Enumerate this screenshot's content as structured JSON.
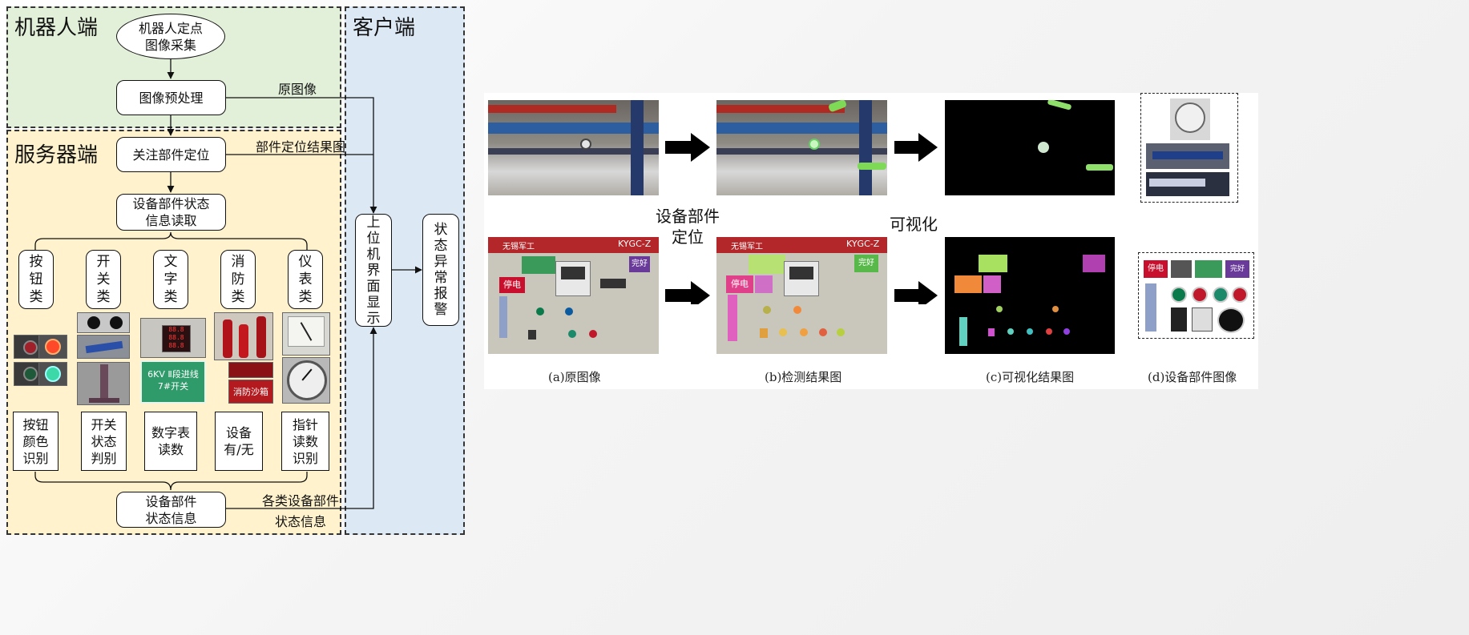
{
  "colors": {
    "robot_bg": "#e2f0d9",
    "server_bg": "#fff2cc",
    "client_bg": "#dde8f5",
    "line": "#111111"
  },
  "regions": {
    "robot": "机器人端",
    "server": "服务器端",
    "client": "客户端"
  },
  "flow": {
    "capture": "机器人定点\n图像采集",
    "preprocess": "图像预处理",
    "locate": "关注部件定位",
    "read_state": "设备部件状态\n信息读取",
    "categories": [
      "按\n钮\n类",
      "开\n关\n类",
      "文\n字\n类",
      "消\n防\n类",
      "仪\n表\n类"
    ],
    "results": [
      "按钮\n颜色\n识别",
      "开关\n状态\n判别",
      "数字表\n读数",
      "设备\n有/无",
      "指针\n读数\n识别"
    ],
    "state_info": "设备部件\n状态信息",
    "display": "上\n位\n机\n界\n面\n显\n示",
    "alarm": "状\n态\n异\n常\n报\n警"
  },
  "edge_labels": {
    "original": "原图像",
    "locate_result": "部件定位结果图",
    "parts_state_1": "各类设备部件",
    "parts_state_2": "状态信息"
  },
  "thumb_text": {
    "sign": "6KV Ⅱ段进线\n7#开关",
    "fire": "消防沙箱"
  },
  "panel": {
    "mid_label_1": "设备部件\n定位",
    "mid_label_2": "可视化",
    "captions": [
      "(a)原图像",
      "(b)检测结果图",
      "(c)可视化结果图",
      "(d)设备部件图像"
    ],
    "cabinet_brand": "无锡军工",
    "cabinet_model": "KYGC-Z",
    "tag_power_off": "停电",
    "tag_good": "完好"
  }
}
